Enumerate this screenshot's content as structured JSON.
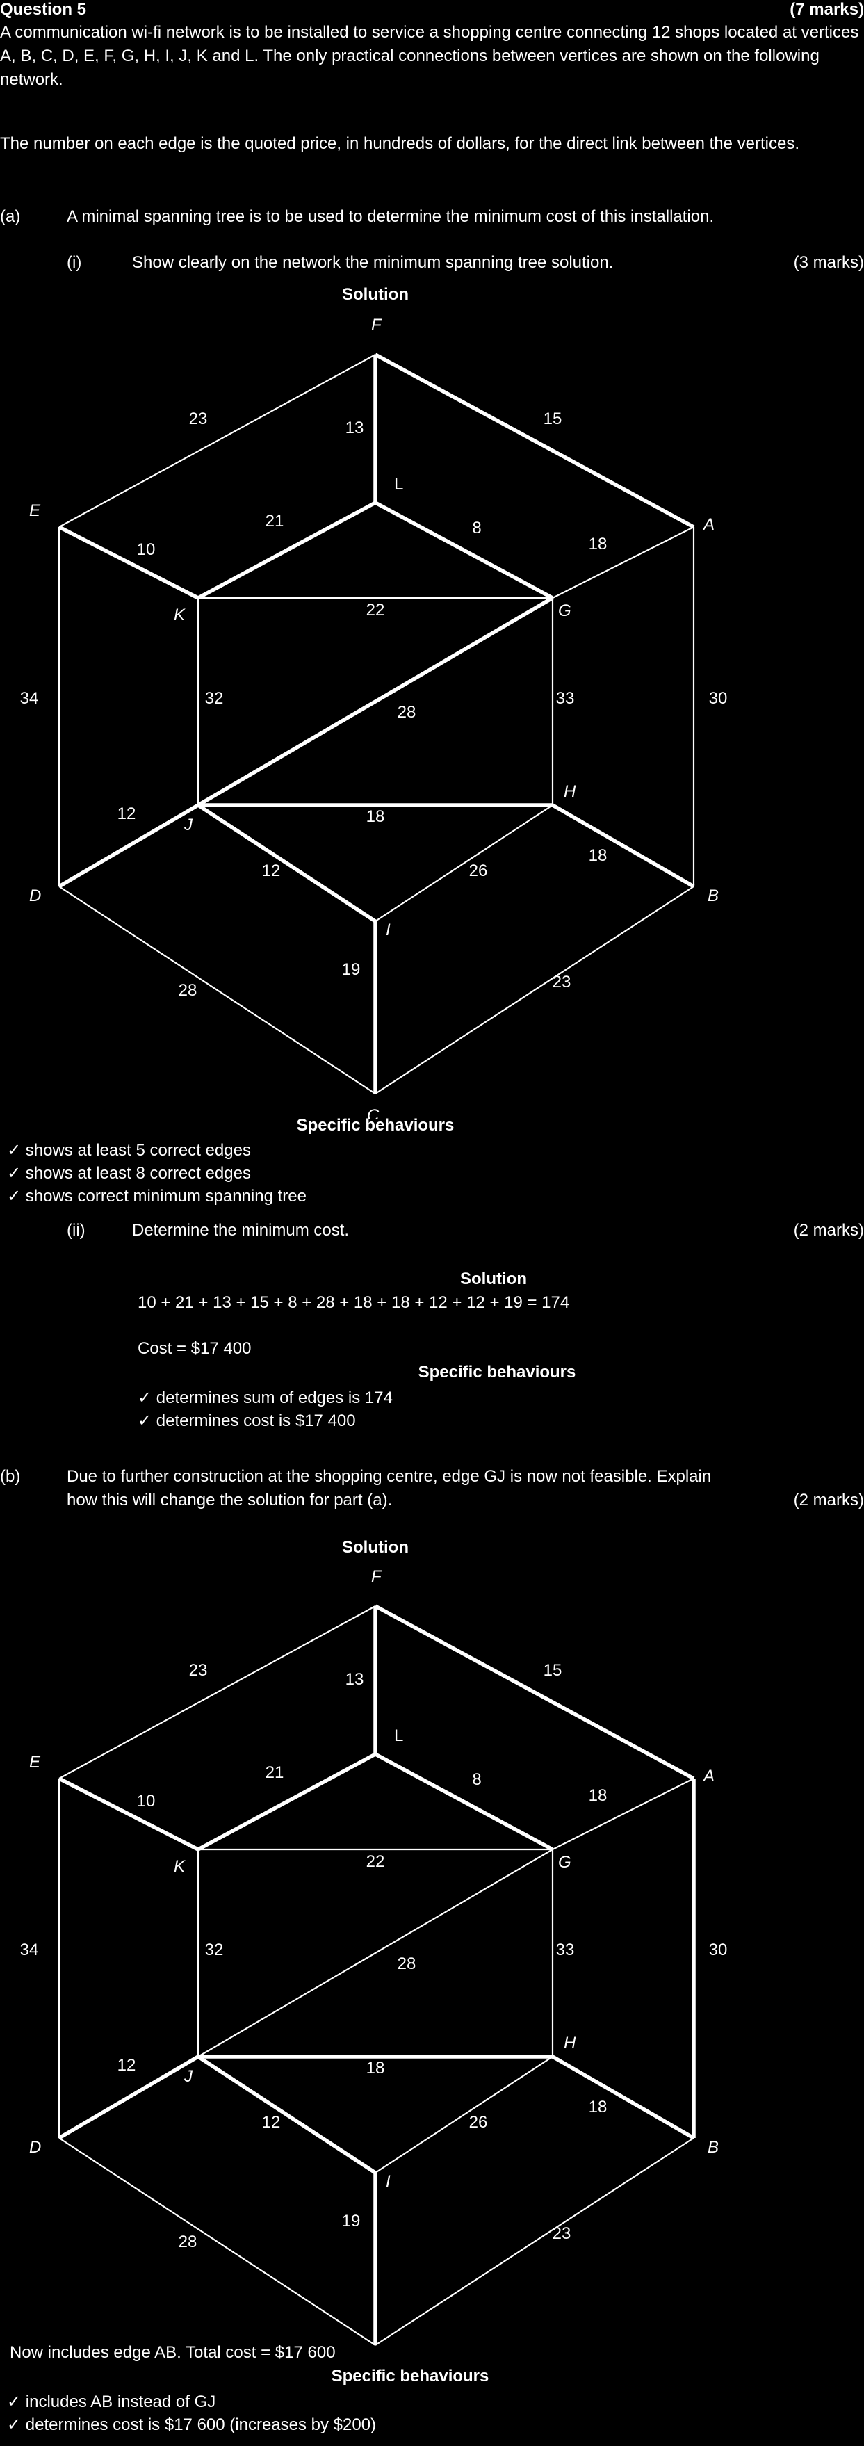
{
  "header": {
    "question": "Question 5",
    "marks": "(7 marks)"
  },
  "intro": [
    "A communication wi-fi network is to be installed to service a shopping centre connecting 12 shops located at vertices A, B, C, D, E, F, G, H, I, J, K and L. The only practical connections between vertices are shown on the following network.",
    "The number on each edge is the quoted price, in hundreds of dollars, for the direct link between the vertices."
  ],
  "part_a": {
    "label": "(a)",
    "text": "A minimal spanning tree is to be used to determine the minimum cost of this installation.",
    "part_i": {
      "label": "(i)",
      "text": "Show clearly on the network the minimum spanning tree solution.",
      "marks": "(3 marks)",
      "solution_caption": "Solution",
      "behaviours_title": "Specific behaviours",
      "behaviours": [
        "✓ shows at least 5 correct edges",
        "✓ shows at least 8 correct edges",
        "✓ shows correct minimum spanning tree"
      ]
    },
    "part_ii": {
      "label": "(ii)",
      "text": "Determine the minimum cost.",
      "marks": "(2 marks)",
      "solution_caption": "Solution",
      "sum_line": "10 + 21 + 13 + 15 + 8 + 28 + 18 + 18 + 12 + 12 + 19 = 174",
      "cost_line": "Cost = $17 400",
      "behaviours_title": "Specific behaviours",
      "behaviours": [
        "✓ determines sum of edges is 174",
        "✓ determines cost is $17 400"
      ]
    }
  },
  "part_b": {
    "label": "(b)",
    "text_line1": "Due to further construction at the shopping centre, edge GJ is now not feasible. Explain",
    "text_line2": "how this will change the solution for part (a).",
    "marks": "(2 marks)",
    "solution_caption": "Solution",
    "answer": "Now includes edge AB. Total cost = $17 600",
    "behaviours_title": "Specific behaviours",
    "behaviours": [
      "✓ includes AB instead of GJ",
      "✓ determines cost is $17 600 (increases by $200)"
    ]
  },
  "network": {
    "vertices": [
      "A",
      "B",
      "C",
      "D",
      "E",
      "F",
      "G",
      "H",
      "I",
      "J",
      "K",
      "L"
    ],
    "edges": [
      {
        "from": "F",
        "to": "E",
        "weight": "23"
      },
      {
        "from": "F",
        "to": "A",
        "weight": "15"
      },
      {
        "from": "F",
        "to": "L",
        "weight": "13"
      },
      {
        "from": "E",
        "to": "K",
        "weight": "10"
      },
      {
        "from": "L",
        "to": "K",
        "weight": "21"
      },
      {
        "from": "L",
        "to": "G",
        "weight": "8"
      },
      {
        "from": "A",
        "to": "G",
        "weight": "18"
      },
      {
        "from": "K",
        "to": "G",
        "weight": "22"
      },
      {
        "from": "E",
        "to": "D",
        "weight": "34"
      },
      {
        "from": "K",
        "to": "J",
        "weight": "32"
      },
      {
        "from": "G",
        "to": "J",
        "weight": "28"
      },
      {
        "from": "G",
        "to": "H",
        "weight": "33"
      },
      {
        "from": "A",
        "to": "B",
        "weight": "30"
      },
      {
        "from": "D",
        "to": "J",
        "weight": "12"
      },
      {
        "from": "J",
        "to": "H",
        "weight": "18"
      },
      {
        "from": "J",
        "to": "I",
        "weight": "12"
      },
      {
        "from": "I",
        "to": "H",
        "weight": "26"
      },
      {
        "from": "H",
        "to": "B",
        "weight": "18"
      },
      {
        "from": "D",
        "to": "C",
        "weight": "28"
      },
      {
        "from": "I",
        "to": "C",
        "weight": "19"
      },
      {
        "from": "B",
        "to": "C",
        "weight": "23"
      }
    ]
  }
}
